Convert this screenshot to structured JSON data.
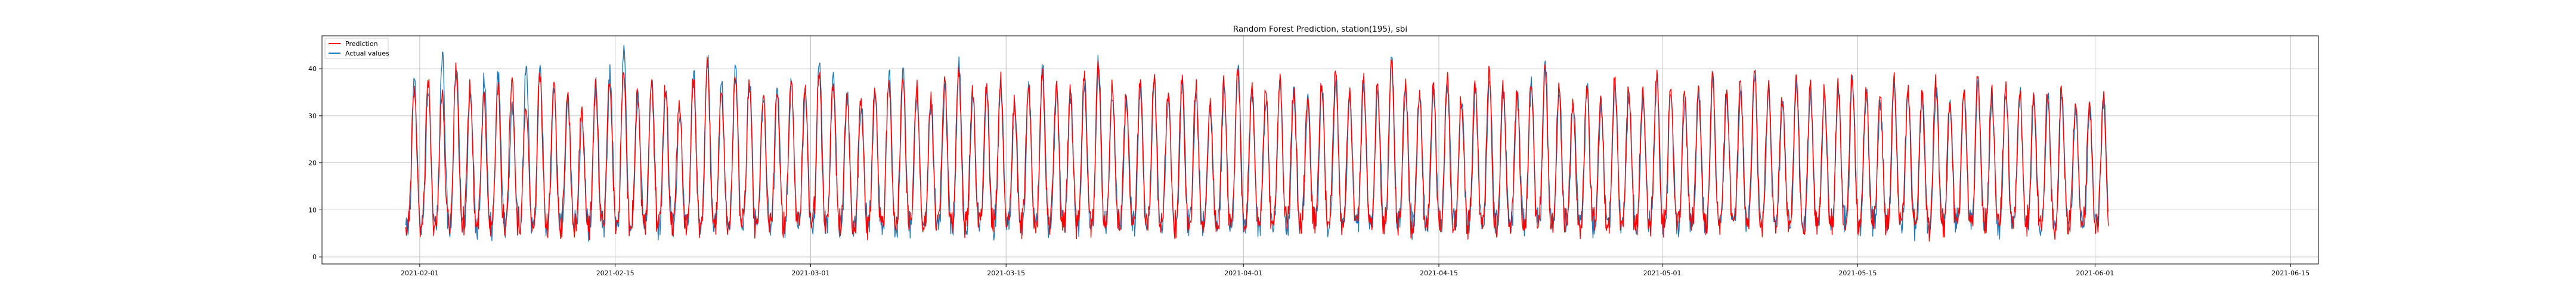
{
  "chart_data": {
    "type": "line",
    "title": "Random Forest Prediction, station(195), sbi",
    "xlabel": "",
    "ylabel": "",
    "x_range": [
      "2021-01-25",
      "2021-06-17"
    ],
    "ylim": [
      -1.5,
      47
    ],
    "x_ticks": [
      "2021-02-01",
      "2021-02-15",
      "2021-03-01",
      "2021-03-15",
      "2021-04-01",
      "2021-04-15",
      "2021-05-01",
      "2021-05-15",
      "2021-06-01",
      "2021-06-15"
    ],
    "y_ticks": [
      0,
      10,
      20,
      30,
      40
    ],
    "grid": true,
    "legend_position": "top-left",
    "data_start": "2021-01-31",
    "data_end": "2021-06-10",
    "series": [
      {
        "name": "Prediction",
        "color": "#ff0000",
        "values_daily_peak": [
          36,
          38,
          35,
          40,
          37,
          34,
          36,
          38,
          33,
          39,
          37,
          35,
          31,
          36,
          38,
          40,
          35,
          37,
          36,
          33,
          38,
          41,
          36,
          39,
          37,
          34,
          35,
          38,
          36,
          40,
          37,
          35,
          33,
          36,
          38,
          39,
          36,
          34,
          37,
          40,
          35,
          36,
          38,
          33,
          37,
          39,
          36,
          35,
          38,
          41,
          36,
          34,
          37,
          39,
          35,
          38,
          36,
          33,
          37,
          40,
          36,
          35,
          38,
          36,
          34,
          37,
          39,
          35,
          38,
          36,
          41,
          37,
          35,
          36,
          38,
          34,
          37,
          39,
          36,
          35,
          38,
          40,
          36,
          34,
          37,
          33,
          38,
          36,
          35,
          39,
          37,
          34,
          36,
          38,
          35,
          37,
          40,
          36,
          34,
          38,
          36,
          35,
          37,
          39,
          36,
          34,
          38,
          36,
          35,
          37,
          33,
          36,
          38,
          35,
          37,
          36,
          34,
          35,
          36,
          33,
          32,
          34
        ]
      },
      {
        "name": "Actual values",
        "color": "#1f77b4",
        "values_daily_peak": [
          37,
          36,
          43,
          41,
          35,
          38,
          39,
          32,
          41,
          40,
          36,
          33,
          30,
          37,
          39,
          44,
          34,
          38,
          36,
          31,
          39,
          42,
          37,
          40,
          38,
          33,
          36,
          37,
          35,
          41,
          38,
          34,
          32,
          35,
          39,
          40,
          35,
          33,
          36,
          41,
          34,
          35,
          37,
          32,
          36,
          40,
          35,
          34,
          37,
          42,
          35,
          33,
          36,
          38,
          34,
          37,
          35,
          32,
          36,
          41,
          35,
          34,
          37,
          35,
          33,
          36,
          38,
          34,
          37,
          35,
          42,
          36,
          34,
          35,
          37,
          33,
          36,
          38,
          35,
          34,
          37,
          41,
          35,
          33,
          36,
          32,
          37,
          35,
          34,
          38,
          36,
          33,
          35,
          37,
          34,
          36,
          39,
          35,
          33,
          37,
          35,
          34,
          36,
          38,
          35,
          33,
          37,
          35,
          34,
          36,
          32,
          35,
          37,
          34,
          36,
          35,
          33,
          34,
          35,
          32,
          31,
          33
        ]
      }
    ]
  }
}
